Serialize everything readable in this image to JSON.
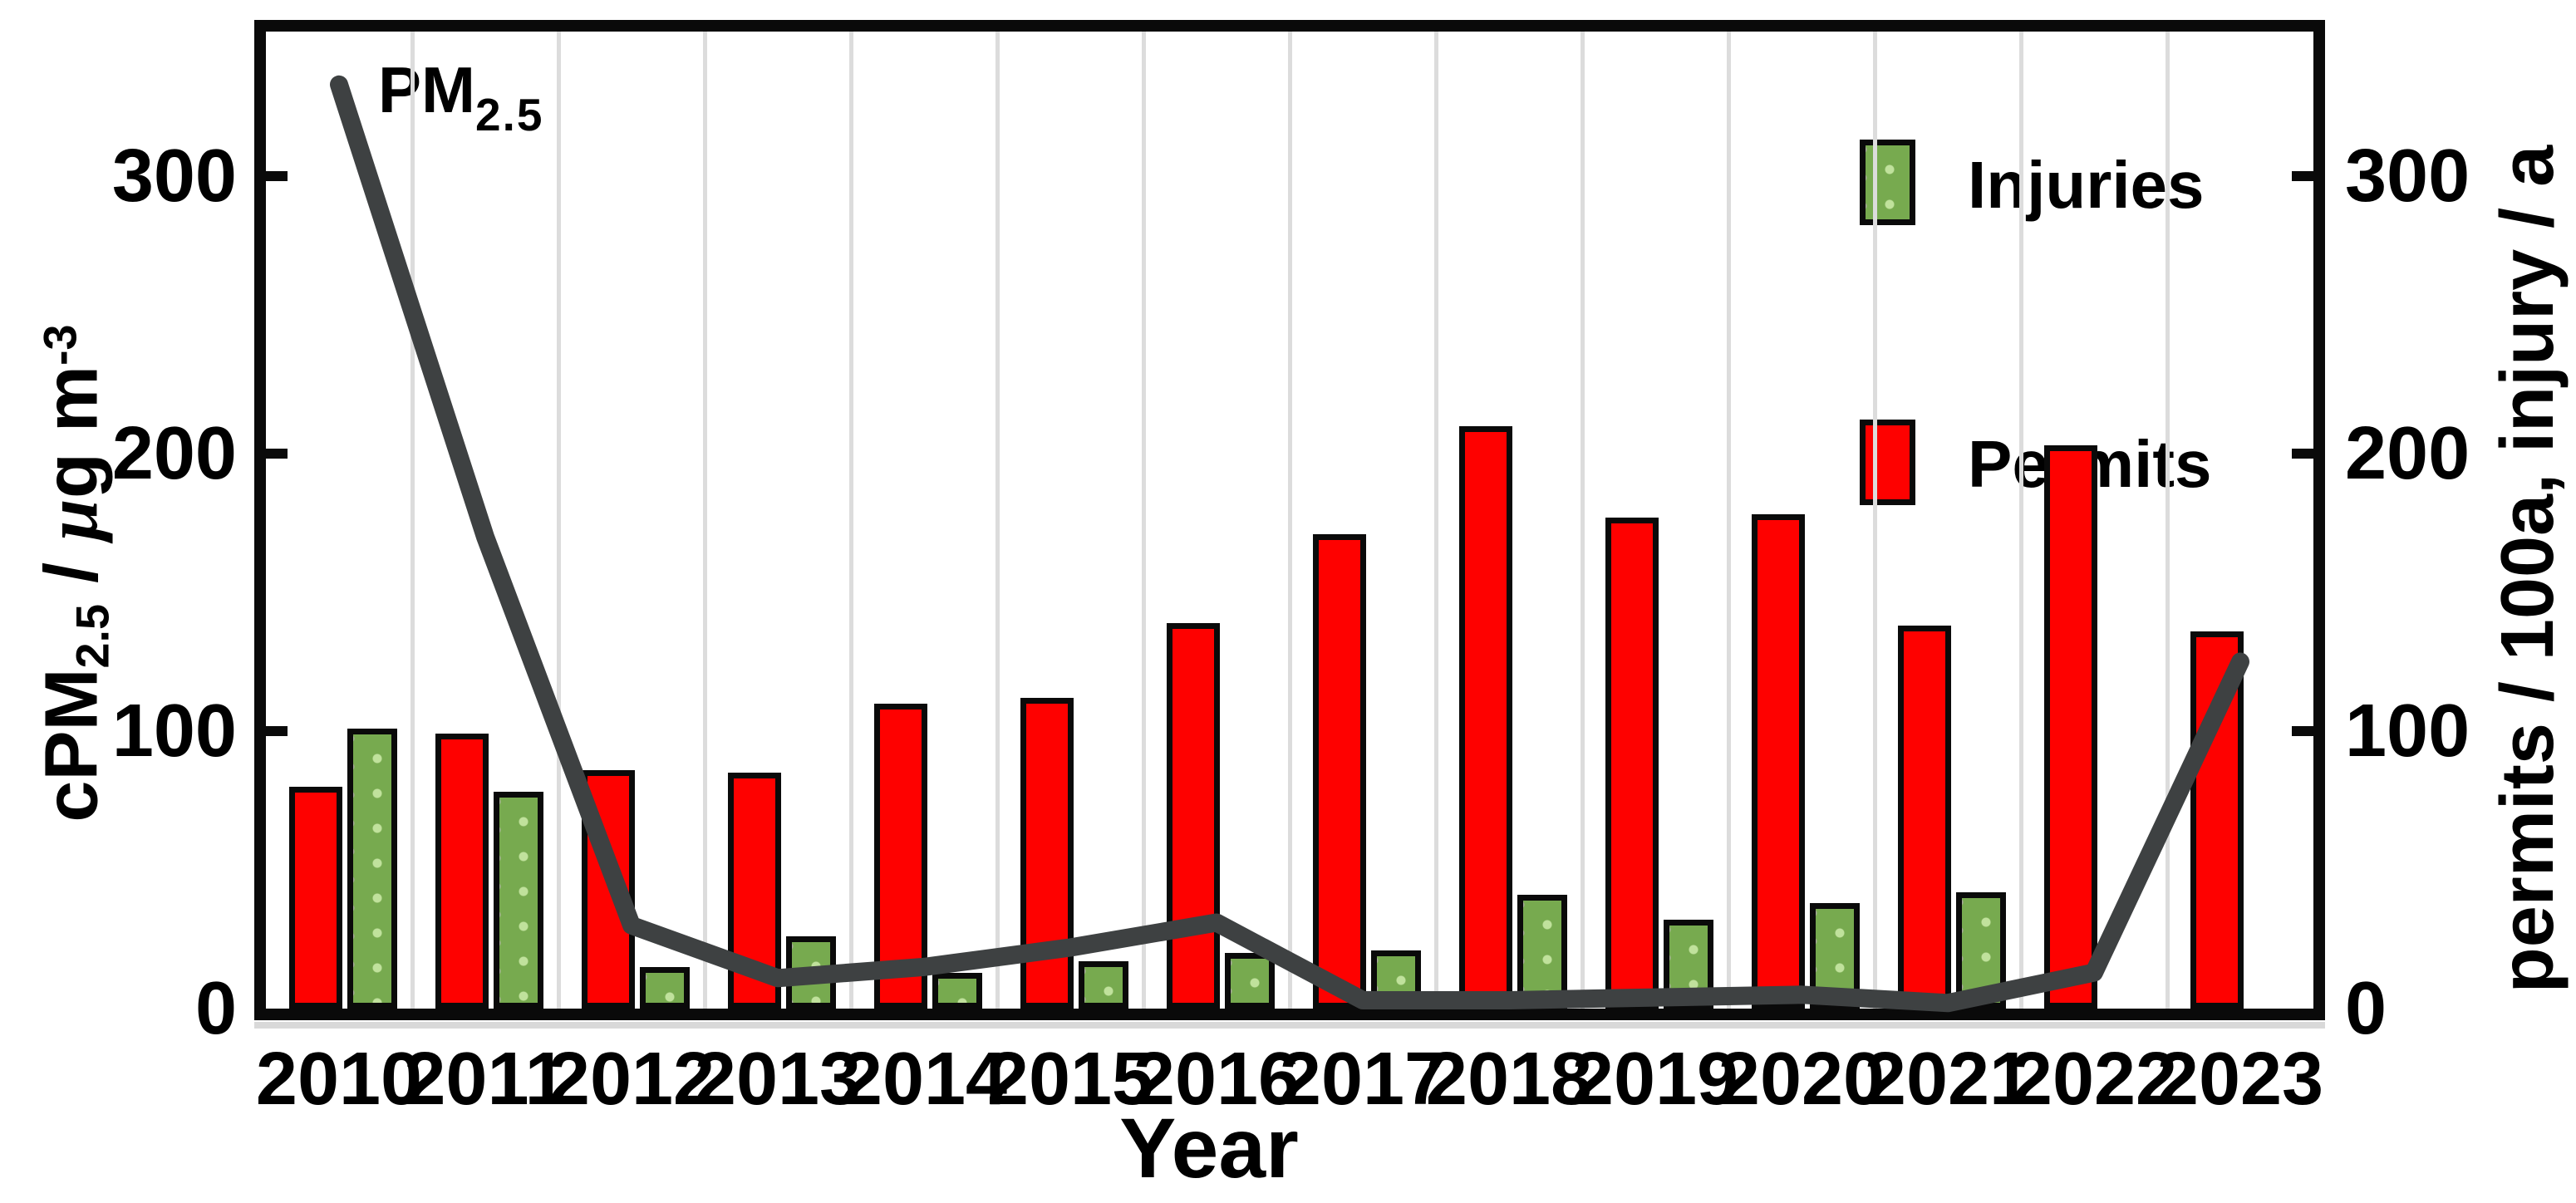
{
  "chart_data": {
    "type": "composite",
    "categories": [
      "2010",
      "2011",
      "2012",
      "2013",
      "2014",
      "2015",
      "2016",
      "2017",
      "2018",
      "2019",
      "2020",
      "2021",
      "2022",
      "2023"
    ],
    "series": [
      {
        "name": "Permits",
        "type": "bar",
        "axis": "right",
        "color": "#fe0100",
        "values": [
          80,
          99,
          86,
          85,
          110,
          112,
          139,
          171,
          210,
          177,
          178,
          138,
          203,
          136
        ]
      },
      {
        "name": "Injuries",
        "type": "bar",
        "axis": "right",
        "color": "#77aa4f",
        "values": [
          101,
          78,
          15,
          26,
          13,
          17,
          20,
          21,
          41,
          32,
          38,
          42,
          null,
          null
        ]
      },
      {
        "name": "PM2.5",
        "type": "line",
        "axis": "left",
        "color": "#3e4142",
        "values": [
          333,
          170,
          30,
          11,
          15,
          22,
          31,
          3,
          3,
          4,
          5,
          2,
          13,
          125
        ]
      }
    ],
    "xlabel": "Year",
    "left_axis": {
      "label": "cPM2.5 / µg m-3",
      "ticks": [
        "0",
        "100",
        "200",
        "300"
      ],
      "range": [
        0,
        352
      ]
    },
    "right_axis": {
      "label": "permits / 100a, injury / a",
      "ticks": [
        "0",
        "100",
        "200",
        "300"
      ],
      "range": [
        0,
        352
      ]
    },
    "legend": {
      "position": "top-right",
      "entries": [
        {
          "label": "Injuries",
          "color": "#77aa4f"
        },
        {
          "label": "Permits",
          "color": "#fe0100"
        }
      ]
    },
    "annotations": [
      {
        "text": "PM2.5",
        "target": "line-start"
      }
    ],
    "grid": "vertical-only"
  },
  "labels": {
    "pm": {
      "base": "PM",
      "sub": "2.5"
    },
    "left_axis_title": {
      "pre": "cPM",
      "sub": "2.5",
      "mid1": " / ",
      "mu": "µ",
      "mid2": "g  m",
      "sup": "-3"
    },
    "right_axis_title": "permits / 100a,  injury / a",
    "x_title": "Year",
    "legend_injuries": "Injuries",
    "legend_permits": "Permits"
  },
  "colors": {
    "permits": "#fe0100",
    "injuries": "#77aa4f",
    "pm_line": "#3e4142",
    "axis": "#0a0a0a",
    "gridline": "#dcdcdc"
  }
}
